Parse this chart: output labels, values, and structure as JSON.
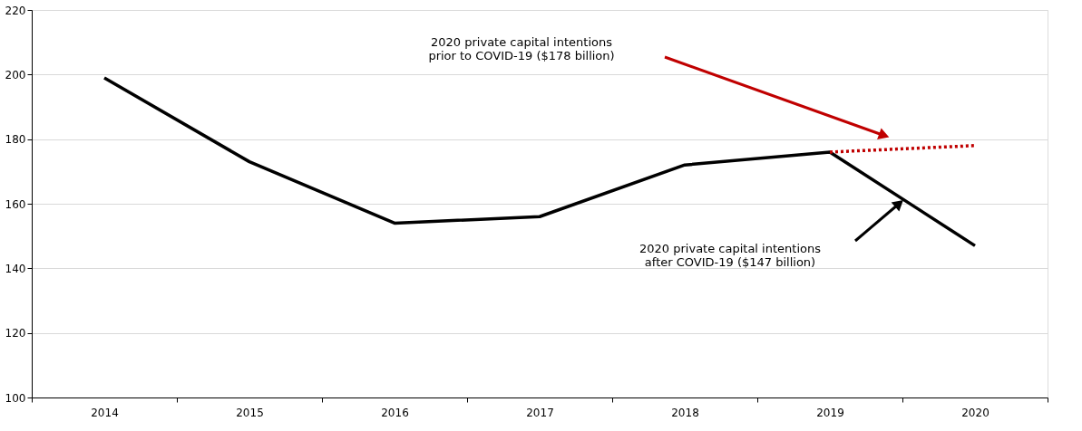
{
  "chart_data": {
    "type": "line",
    "categories": [
      "2014",
      "2015",
      "2016",
      "2017",
      "2018",
      "2019",
      "2020"
    ],
    "series": [
      {
        "color": "#000000",
        "line_style": "solid",
        "values": [
          199,
          173,
          154,
          156,
          172,
          176,
          147
        ]
      },
      {
        "color": "#c00000",
        "line_style": "dotted",
        "values": [
          null,
          null,
          null,
          null,
          null,
          176,
          178
        ]
      }
    ],
    "ylim": [
      100,
      220
    ],
    "yticks": [
      100,
      120,
      140,
      160,
      180,
      200,
      220
    ],
    "grid": "y",
    "marker": "none",
    "annotations": [
      "2020 private capital intentions\nprior to COVID-19 ($178 billion)",
      "2020 private capital intentions\nafter COVID-19 ($147 billion)"
    ]
  }
}
